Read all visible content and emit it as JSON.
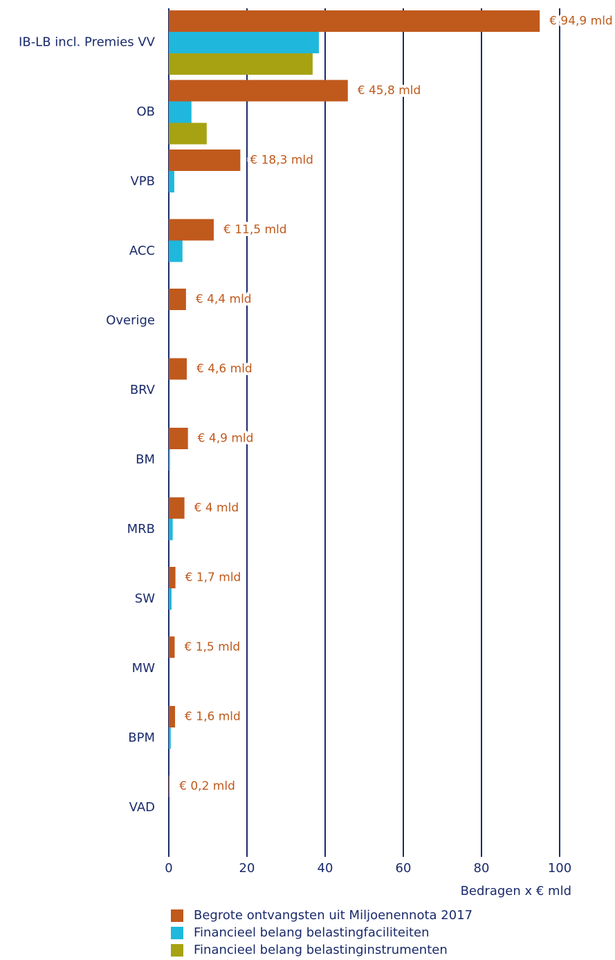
{
  "chart_data": {
    "type": "bar",
    "orientation": "horizontal",
    "xlabel": "Bedragen x € mld",
    "categories": [
      "IB-LB incl. Premies VV",
      "OB",
      "VPB",
      "ACC",
      "Overige",
      "BRV",
      "BM",
      "MRB",
      "SW",
      "MW",
      "BPM",
      "VAD"
    ],
    "series": [
      {
        "name": "Begrote ontvangsten uit Miljoenennota 2017",
        "color": "#c0591c",
        "values": [
          94.9,
          45.8,
          18.3,
          11.5,
          4.4,
          4.6,
          4.9,
          4,
          1.7,
          1.5,
          1.6,
          0.2
        ],
        "value_labels": [
          "€ 94,9 mld",
          "€ 45,8 mld",
          "€ 18,3 mld",
          "€ 11,5 mld",
          "€ 4,4 mld",
          "€ 4,6 mld",
          "€ 4,9 mld",
          "€ 4 mld",
          "€ 1,7 mld",
          "€ 1,5 mld",
          "€ 1,6 mld",
          "€ 0,2 mld"
        ]
      },
      {
        "name": "Financieel belang belastingfaciliteiten",
        "color": "#1fb8dc",
        "values": [
          38.4,
          5.8,
          1.4,
          3.5,
          null,
          null,
          0.3,
          1.0,
          0.7,
          null,
          0.5,
          null
        ]
      },
      {
        "name": "Financieel belang belastinginstrumenten",
        "color": "#a7a212",
        "values": [
          36.8,
          9.7,
          null,
          null,
          null,
          null,
          null,
          null,
          null,
          null,
          null,
          null
        ]
      }
    ],
    "xlim": [
      0,
      100
    ],
    "xticks": [
      0,
      20,
      40,
      60,
      80,
      100
    ],
    "grid": true,
    "grid_color": "#1a2a6b"
  }
}
